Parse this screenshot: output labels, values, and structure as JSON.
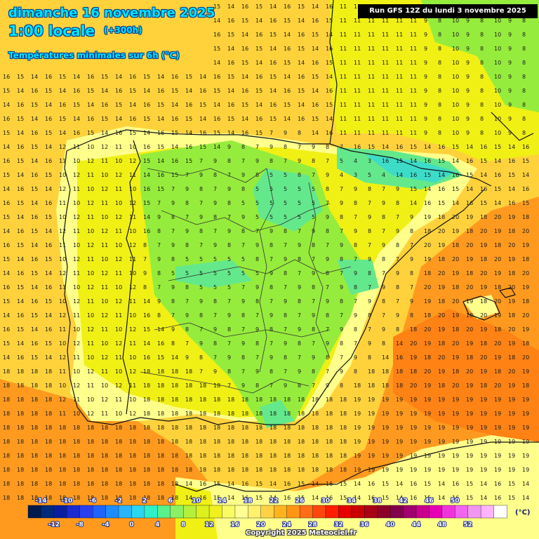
{
  "header": {
    "date": "dimanche 16 novembre 2025",
    "time": "1:00 locale",
    "hours": "(+300h)",
    "subtitle": "Températures minimales sur 6h (°C)"
  },
  "run_info": "Run GFS 12Z du lundi 3 novembre 2025",
  "copyright": "Copyright 2025 Meteociel.fr",
  "legend": {
    "unit": "(°C)",
    "colors": [
      "#001a4d",
      "#002a7a",
      "#0a1fa0",
      "#1a2bd0",
      "#2a40f0",
      "#1e64ff",
      "#1e8cff",
      "#2ab4ff",
      "#2ad6f0",
      "#2ef0c8",
      "#5af08c",
      "#8cf064",
      "#b4f03c",
      "#dcf01e",
      "#f0f01e",
      "#fafa64",
      "#ffff96",
      "#fff06e",
      "#ffd246",
      "#ffb41e",
      "#ff9614",
      "#ff6e14",
      "#ff460a",
      "#ff1e00",
      "#e60000",
      "#c80000",
      "#aa0014",
      "#8c0028",
      "#82004b",
      "#a0006e",
      "#c8008c",
      "#e600b4",
      "#f032dc",
      "#f064f0",
      "#f096f0",
      "#ffb4ff",
      "#ffffff"
    ],
    "labels_top": [
      "-14",
      "-10",
      "-6",
      "-2",
      "2",
      "6",
      "10",
      "14",
      "18",
      "22",
      "26",
      "30",
      "34",
      "38",
      "42",
      "46",
      "50"
    ],
    "labels_bottom": [
      "-12",
      "-8",
      "-4",
      "0",
      "4",
      "8",
      "12",
      "16",
      "20",
      "24",
      "28",
      "32",
      "36",
      "40",
      "44",
      "48",
      "52"
    ]
  },
  "map_colors": {
    "sea": "#ffd23c",
    "sea_warm": "#ff9a1e",
    "sea_warmer": "#ff8214",
    "land_pale": "#ffff8c",
    "land_yellow": "#f0f014",
    "land_green": "#96ec3c",
    "land_cool": "#64e88c",
    "land_cold": "#3cdcc8",
    "border": "#111111"
  }
}
